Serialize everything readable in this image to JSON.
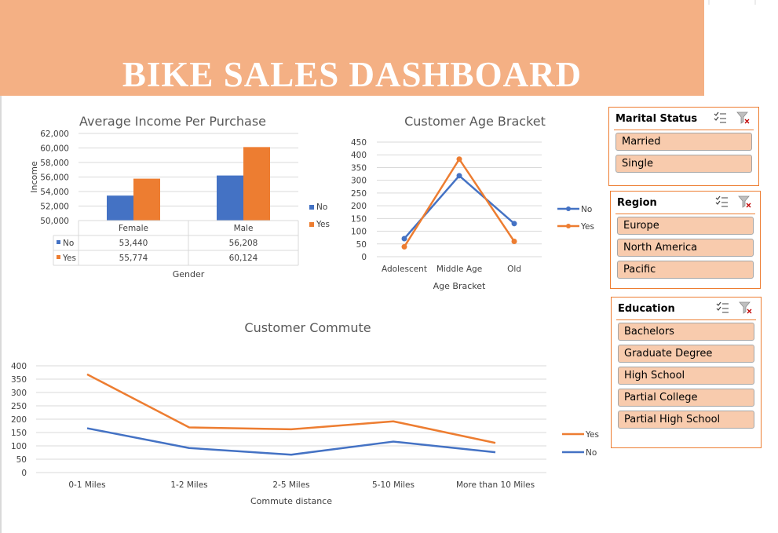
{
  "dashboard": {
    "title": "BIKE SALES DASHBOARD",
    "colors": {
      "no": "#4472c4",
      "yes": "#ed7d31",
      "banner": "#f4b084",
      "slicer_item": "#f8cbad"
    }
  },
  "chart_data": [
    {
      "id": "income",
      "type": "bar",
      "title": "Average Income Per Purchase",
      "xlabel": "Gender",
      "ylabel": "Income",
      "ylim": [
        50000,
        62000
      ],
      "yticks": [
        "50,000",
        "52,000",
        "54,000",
        "56,000",
        "58,000",
        "60,000",
        "62,000"
      ],
      "categories": [
        "Female",
        "Male"
      ],
      "series": [
        {
          "name": "No",
          "values": [
            53440,
            56208
          ],
          "labels": [
            "53,440",
            "56,208"
          ]
        },
        {
          "name": "Yes",
          "values": [
            55774,
            60124
          ],
          "labels": [
            "55,774",
            "60,124"
          ]
        }
      ],
      "legend": "right",
      "data_table": true
    },
    {
      "id": "age",
      "type": "line",
      "title": "Customer Age Bracket",
      "xlabel": "Age Bracket",
      "ylim": [
        0,
        450
      ],
      "yticks": [
        "0",
        "50",
        "100",
        "150",
        "200",
        "250",
        "300",
        "350",
        "400",
        "450"
      ],
      "categories": [
        "Adolescent",
        "Middle Age",
        "Old"
      ],
      "series": [
        {
          "name": "No",
          "values": [
            71,
            318,
            130
          ]
        },
        {
          "name": "Yes",
          "values": [
            39,
            383,
            60
          ]
        }
      ],
      "markers": true,
      "legend": "right"
    },
    {
      "id": "commute",
      "type": "line",
      "title": "Customer Commute",
      "xlabel": "Commute distance",
      "ylim": [
        0,
        400
      ],
      "yticks": [
        "0",
        "50",
        "100",
        "150",
        "200",
        "250",
        "300",
        "350",
        "400"
      ],
      "categories": [
        "0-1 Miles",
        "1-2 Miles",
        "2-5 Miles",
        "5-10 Miles",
        "More than 10 Miles"
      ],
      "series": [
        {
          "name": "Yes",
          "values": [
            368,
            169,
            162,
            192,
            111
          ]
        },
        {
          "name": "No",
          "values": [
            166,
            92,
            67,
            116,
            76
          ]
        }
      ],
      "legend": "right"
    }
  ],
  "slicers": [
    {
      "id": "marital",
      "title": "Marital Status",
      "items": [
        "Married",
        "Single"
      ]
    },
    {
      "id": "region",
      "title": "Region",
      "items": [
        "Europe",
        "North America",
        "Pacific"
      ]
    },
    {
      "id": "education",
      "title": "Education",
      "items": [
        "Bachelors",
        "Graduate Degree",
        "High School",
        "Partial College",
        "Partial High School"
      ]
    }
  ]
}
